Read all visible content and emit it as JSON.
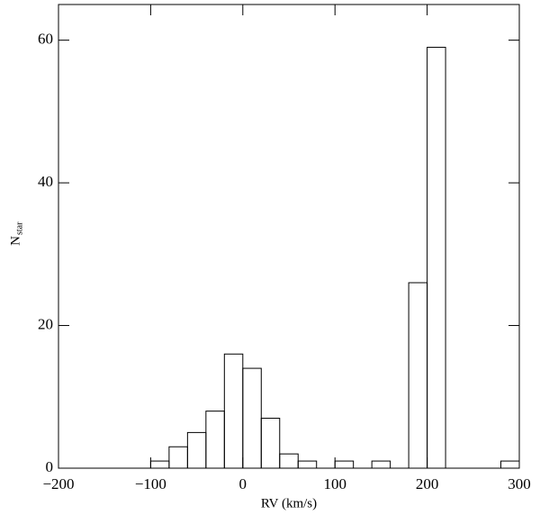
{
  "chart_data": {
    "type": "histogram",
    "xlabel": "RV (km/s)",
    "ylabel": "N",
    "ylabel_sub": "star",
    "bins": [
      -200,
      -180,
      -160,
      -140,
      -120,
      -100,
      -80,
      -60,
      -40,
      -20,
      0,
      20,
      40,
      60,
      80,
      100,
      120,
      140,
      160,
      180,
      200,
      220,
      240,
      260,
      280,
      300
    ],
    "values": [
      0,
      0,
      0,
      0,
      0,
      1,
      3,
      5,
      8,
      16,
      14,
      7,
      2,
      1,
      0,
      1,
      0,
      1,
      0,
      26,
      59,
      0,
      0,
      0,
      1
    ],
    "color": "#000000",
    "xlim": [
      -200,
      300
    ],
    "xticks": [
      {
        "value": -200,
        "label": "−200"
      },
      {
        "value": -100,
        "label": "−100"
      },
      0,
      100,
      200,
      300
    ],
    "ylim": [
      0,
      65
    ],
    "yticks": [
      0,
      20,
      40,
      60
    ]
  }
}
